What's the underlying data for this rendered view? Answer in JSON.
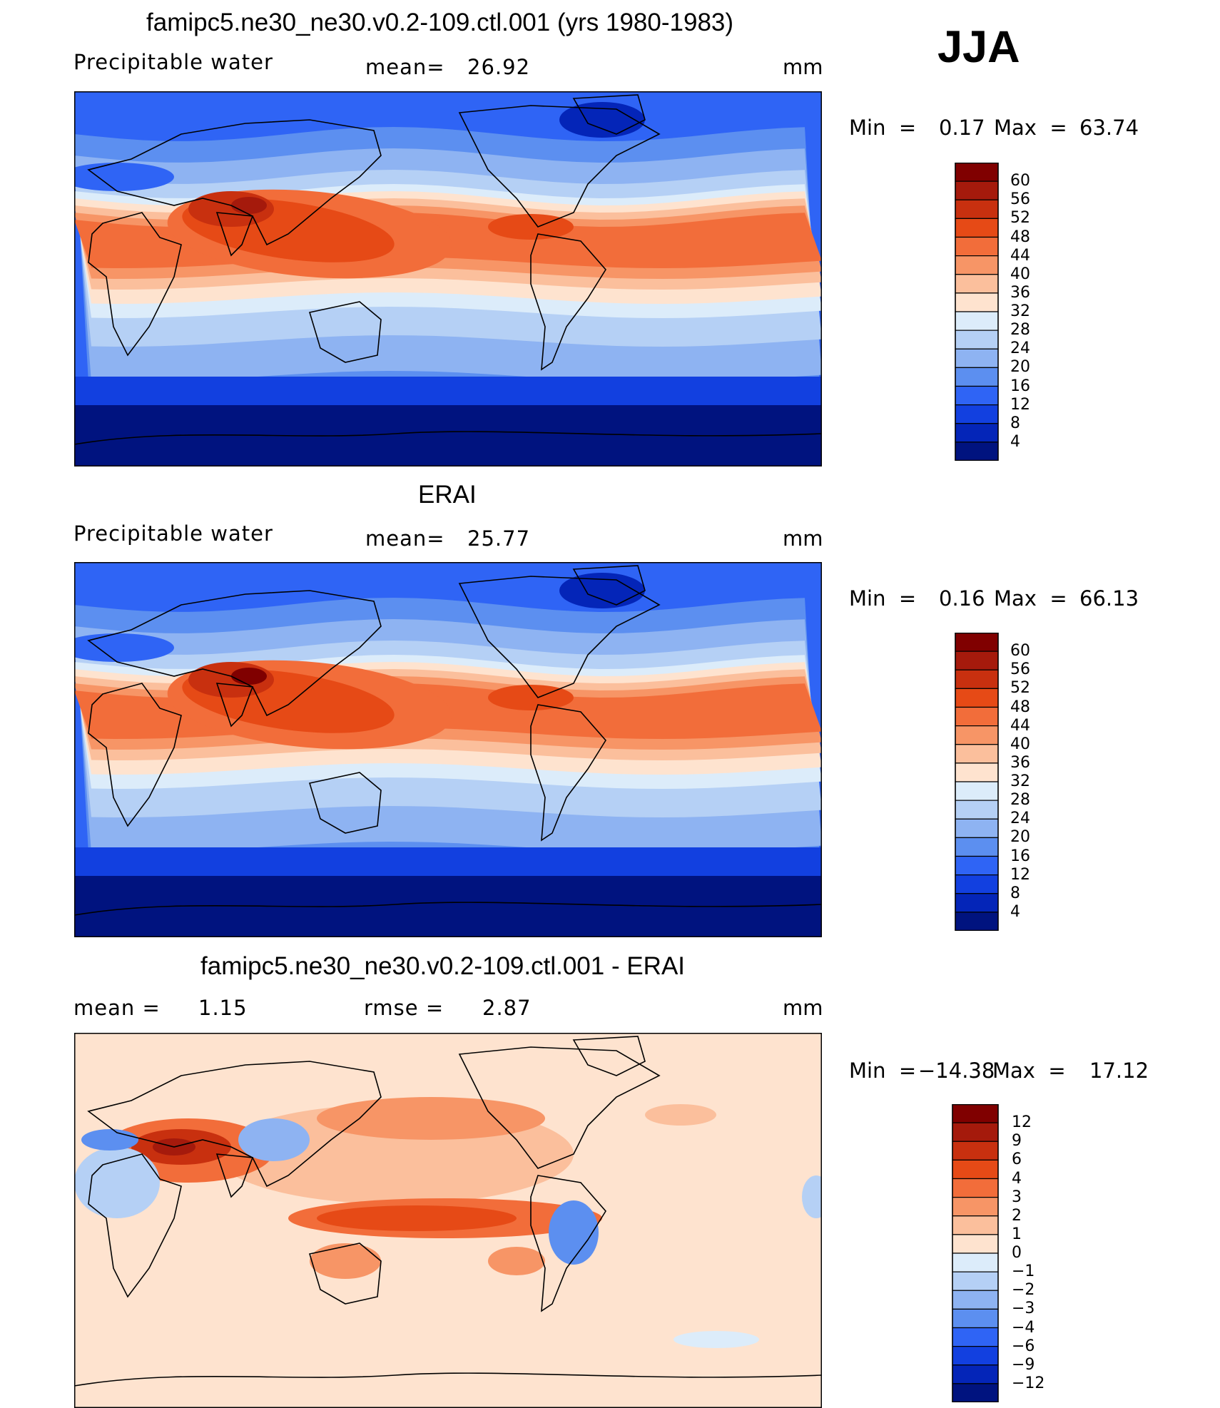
{
  "season": "JJA",
  "units_label": "mm",
  "panels": [
    {
      "id": "model",
      "title": "famipc5.ne30_ne30.v0.2-109.ctl.001 (yrs 1980-1983)",
      "variable": "Precipitable water",
      "stat1_label": "mean=",
      "stat1_value": "26.92",
      "units": "mm",
      "min_label": "Min  =",
      "min_value": "0.17",
      "max_label": "Max  =",
      "max_value": "63.74",
      "colorbar_ticks": [
        "60",
        "56",
        "52",
        "48",
        "44",
        "40",
        "36",
        "32",
        "28",
        "24",
        "20",
        "16",
        "12",
        "8",
        "4"
      ]
    },
    {
      "id": "obs",
      "title": "ERAI",
      "variable": "Precipitable water",
      "stat1_label": "mean=",
      "stat1_value": "25.77",
      "units": "mm",
      "min_label": "Min  =",
      "min_value": "0.16",
      "max_label": "Max  =",
      "max_value": "66.13",
      "colorbar_ticks": [
        "60",
        "56",
        "52",
        "48",
        "44",
        "40",
        "36",
        "32",
        "28",
        "24",
        "20",
        "16",
        "12",
        "8",
        "4"
      ]
    },
    {
      "id": "diff",
      "title": "famipc5.ne30_ne30.v0.2-109.ctl.001 - ERAI",
      "stat1_label": "mean =",
      "stat1_value": "1.15",
      "stat2_label": "rmse =",
      "stat2_value": "2.87",
      "units": "mm",
      "min_label": "Min  =",
      "min_value": "−14.38",
      "max_label": "Max  =",
      "max_value": "17.12",
      "colorbar_ticks": [
        "12",
        "9",
        "6",
        "4",
        "3",
        "2",
        "1",
        "0",
        "−1",
        "−2",
        "−3",
        "−4",
        "−6",
        "−9",
        "−12"
      ]
    }
  ],
  "colors": {
    "abs_scale": [
      "#800000",
      "#a51a0c",
      "#c8300f",
      "#e64a16",
      "#f26d3a",
      "#f79566",
      "#fbbf9c",
      "#fee3cf",
      "#dcecfa",
      "#b5d0f5",
      "#8eb3f2",
      "#5c8ff0",
      "#2f64f5",
      "#1240e0",
      "#0425b8",
      "#00137f"
    ],
    "diff_scale": [
      "#800000",
      "#a51a0c",
      "#c8300f",
      "#e64a16",
      "#f26d3a",
      "#f79566",
      "#fbbf9c",
      "#fee3cf",
      "#dcecfa",
      "#b5d0f5",
      "#8eb3f2",
      "#5c8ff0",
      "#2f64f5",
      "#1240e0",
      "#0425b8",
      "#00137f"
    ]
  }
}
